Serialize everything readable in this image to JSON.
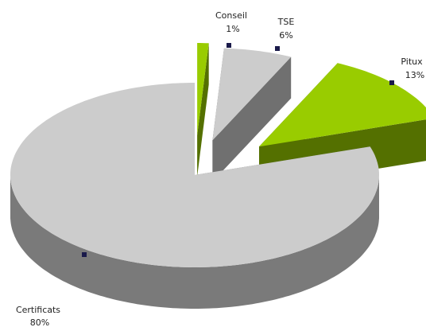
{
  "chart_data": {
    "type": "pie3d",
    "categories": [
      "Conseil",
      "TSE",
      "Pitux",
      "Certificats"
    ],
    "values": [
      1,
      6,
      13,
      80
    ],
    "value_labels": [
      "1%",
      "6%",
      "13%",
      "80%"
    ],
    "colors": [
      "#99cc00",
      "#cccccc",
      "#99cc00",
      "#cccccc"
    ]
  }
}
